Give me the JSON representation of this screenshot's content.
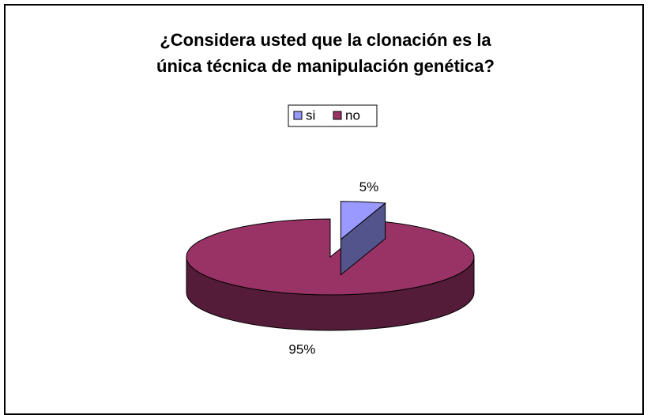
{
  "chart_data": {
    "type": "pie3d",
    "title": "¿Considera usted que la clonación es la única técnica de manipulación genética?",
    "categories": [
      "si",
      "no"
    ],
    "values": [
      5,
      95
    ],
    "value_labels": [
      "5%",
      "95%"
    ],
    "colors": [
      "#9999ff",
      "#993366"
    ],
    "legend": "top"
  }
}
